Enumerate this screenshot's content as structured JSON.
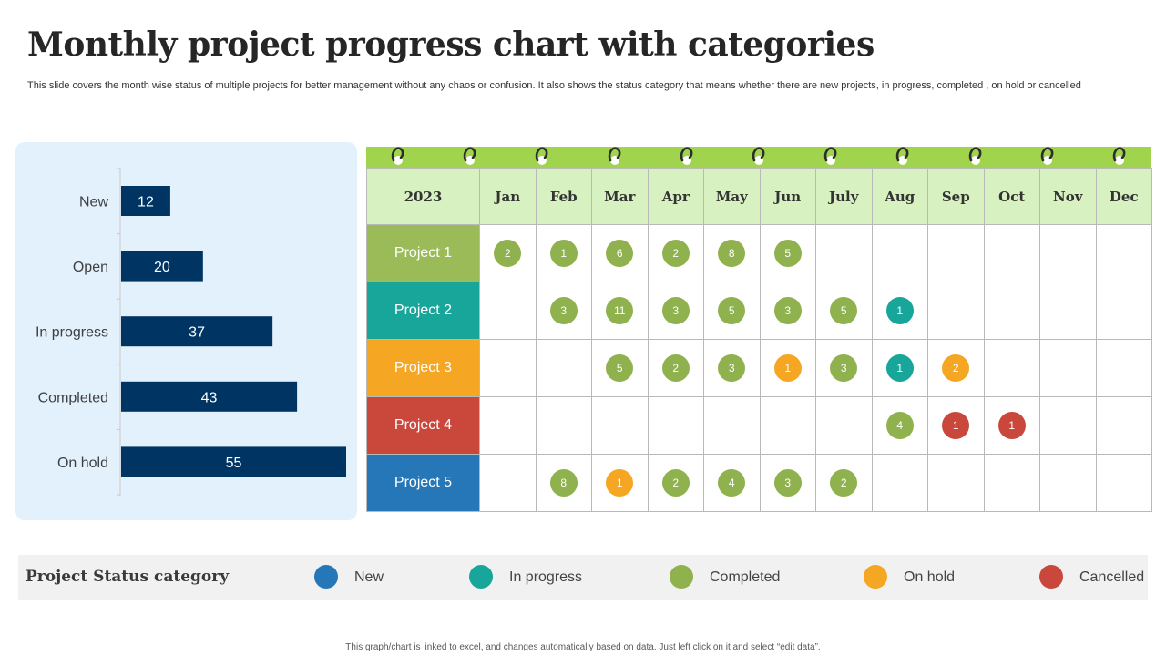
{
  "title": "Monthly project progress chart with categories",
  "subtitle": "This slide covers the month wise status of multiple projects for better management without any chaos or confusion. It also shows the status category that means whether there are new projects, in progress, completed , on hold or cancelled",
  "chart_data": [
    {
      "type": "bar",
      "orientation": "horizontal",
      "categories": [
        "New",
        "Open",
        "In progress",
        "Completed",
        "On hold"
      ],
      "values": [
        12,
        20,
        37,
        43,
        55
      ],
      "xlim": [
        0,
        55
      ],
      "bar_color": "#003563",
      "grid": false
    },
    {
      "type": "table",
      "year": "2023",
      "months": [
        "Jan",
        "Feb",
        "Mar",
        "Apr",
        "May",
        "Jun",
        "July",
        "Aug",
        "Sep",
        "Oct",
        "Nov",
        "Dec"
      ],
      "projects": [
        {
          "name": "Project 1",
          "color": "#9bbb59",
          "cells": [
            {
              "v": "2",
              "s": "completed"
            },
            {
              "v": "1",
              "s": "completed"
            },
            {
              "v": "6",
              "s": "completed"
            },
            {
              "v": "2",
              "s": "completed"
            },
            {
              "v": "8",
              "s": "completed"
            },
            {
              "v": "5",
              "s": "completed"
            },
            null,
            null,
            null,
            null,
            null,
            null
          ]
        },
        {
          "name": "Project 2",
          "color": "#17a699",
          "cells": [
            null,
            {
              "v": "3",
              "s": "completed"
            },
            {
              "v": "11",
              "s": "completed"
            },
            {
              "v": "3",
              "s": "completed"
            },
            {
              "v": "5",
              "s": "completed"
            },
            {
              "v": "3",
              "s": "completed"
            },
            {
              "v": "5",
              "s": "completed"
            },
            {
              "v": "1",
              "s": "in_progress"
            },
            null,
            null,
            null,
            null
          ]
        },
        {
          "name": "Project 3",
          "color": "#f5a623",
          "cells": [
            null,
            null,
            {
              "v": "5",
              "s": "completed"
            },
            {
              "v": "2",
              "s": "completed"
            },
            {
              "v": "3",
              "s": "completed"
            },
            {
              "v": "1",
              "s": "on_hold"
            },
            {
              "v": "3",
              "s": "completed"
            },
            {
              "v": "1",
              "s": "in_progress"
            },
            {
              "v": "2",
              "s": "on_hold"
            },
            null,
            null,
            null
          ]
        },
        {
          "name": "Project 4",
          "color": "#c9473b",
          "cells": [
            null,
            null,
            null,
            null,
            null,
            null,
            null,
            {
              "v": "4",
              "s": "completed"
            },
            {
              "v": "1",
              "s": "cancelled"
            },
            {
              "v": "1",
              "s": "cancelled"
            },
            null,
            null
          ]
        },
        {
          "name": "Project 5",
          "color": "#2577b8",
          "cells": [
            null,
            {
              "v": "8",
              "s": "completed"
            },
            {
              "v": "1",
              "s": "on_hold"
            },
            {
              "v": "2",
              "s": "completed"
            },
            {
              "v": "4",
              "s": "completed"
            },
            {
              "v": "3",
              "s": "completed"
            },
            {
              "v": "2",
              "s": "completed"
            },
            null,
            null,
            null,
            null,
            null
          ]
        }
      ]
    }
  ],
  "status_colors": {
    "new": "#2577b8",
    "in_progress": "#17a699",
    "completed": "#8fb24f",
    "on_hold": "#f5a623",
    "cancelled": "#c9473b"
  },
  "legend": {
    "title": "Project Status category",
    "items": [
      {
        "label": "New",
        "color": "#2577b8"
      },
      {
        "label": "In progress",
        "color": "#17a699"
      },
      {
        "label": "Completed",
        "color": "#8fb24f"
      },
      {
        "label": "On hold",
        "color": "#f5a623"
      },
      {
        "label": "Cancelled",
        "color": "#c9473b"
      }
    ]
  },
  "footer": "This graph/chart is linked to excel, and changes automatically based on data. Just left click on it and select “edit data”."
}
